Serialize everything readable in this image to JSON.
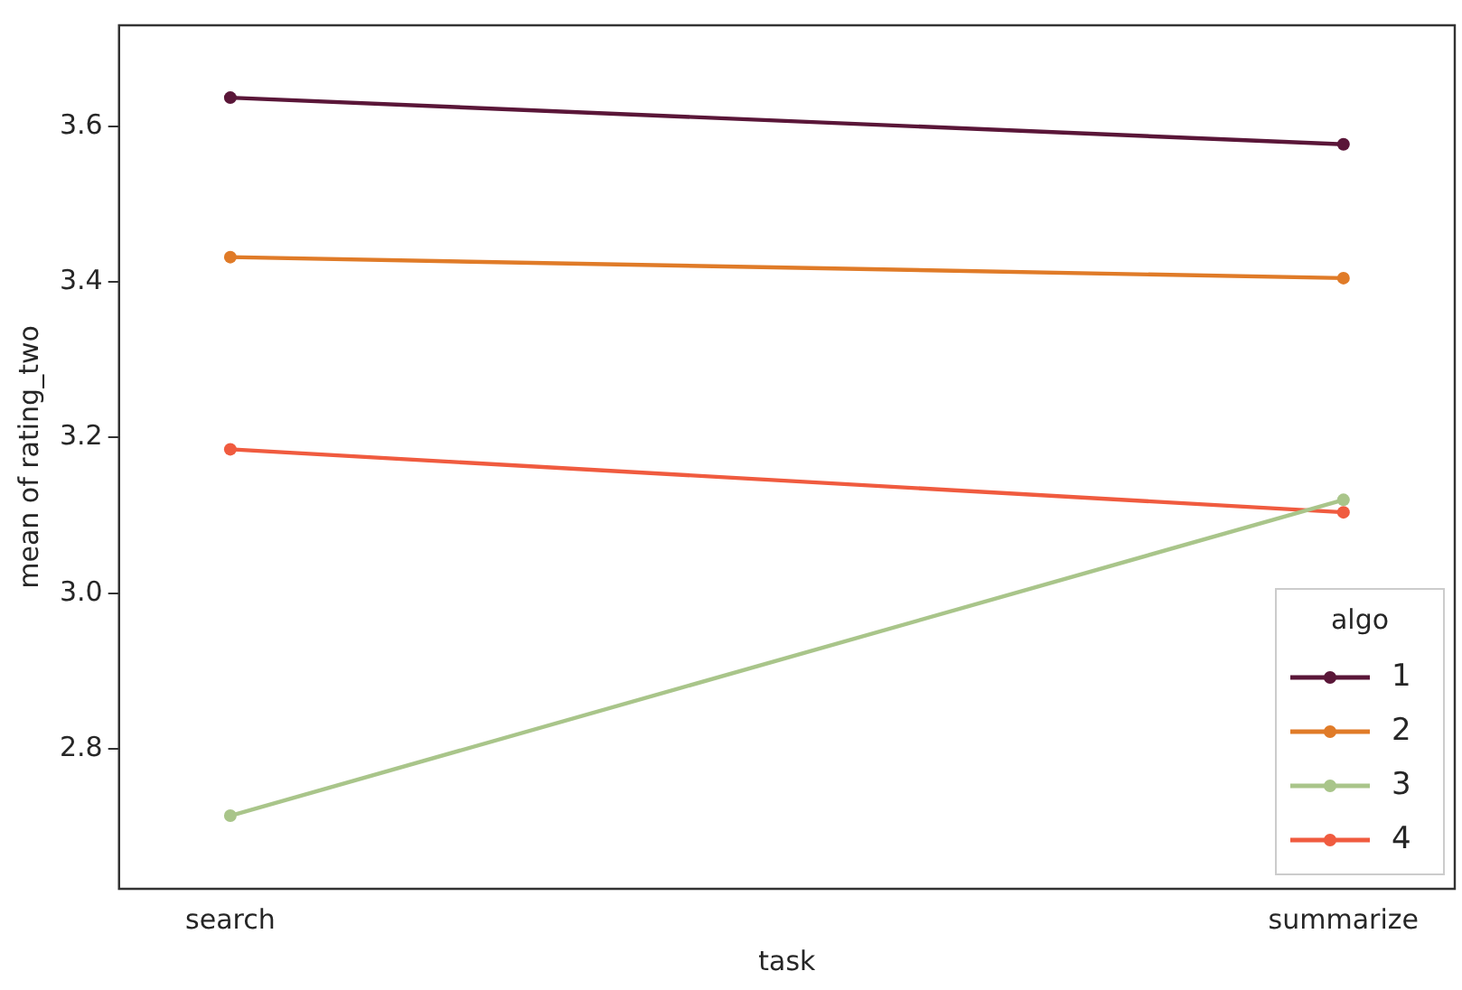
{
  "chart_data": {
    "type": "line",
    "xlabel": "task",
    "ylabel": "mean of rating_two",
    "legend_title": "algo",
    "categories": [
      "search",
      "summarize"
    ],
    "series": [
      {
        "name": "1",
        "color": "#5a1638",
        "values": [
          3.637,
          3.577
        ]
      },
      {
        "name": "2",
        "color": "#e07b28",
        "values": [
          3.432,
          3.405
        ]
      },
      {
        "name": "3",
        "color": "#a9c58a",
        "values": [
          2.714,
          3.12
        ]
      },
      {
        "name": "4",
        "color": "#f05b3f",
        "values": [
          3.185,
          3.104
        ]
      }
    ],
    "ylim": [
      2.62,
      3.73
    ],
    "yticks": [
      2.8,
      {
        "value": 3.0,
        "label": "3.0"
      },
      3.2,
      3.4,
      3.6
    ],
    "grid": false,
    "legend": "bottom right",
    "marker": "circle",
    "line_style": "solid"
  }
}
